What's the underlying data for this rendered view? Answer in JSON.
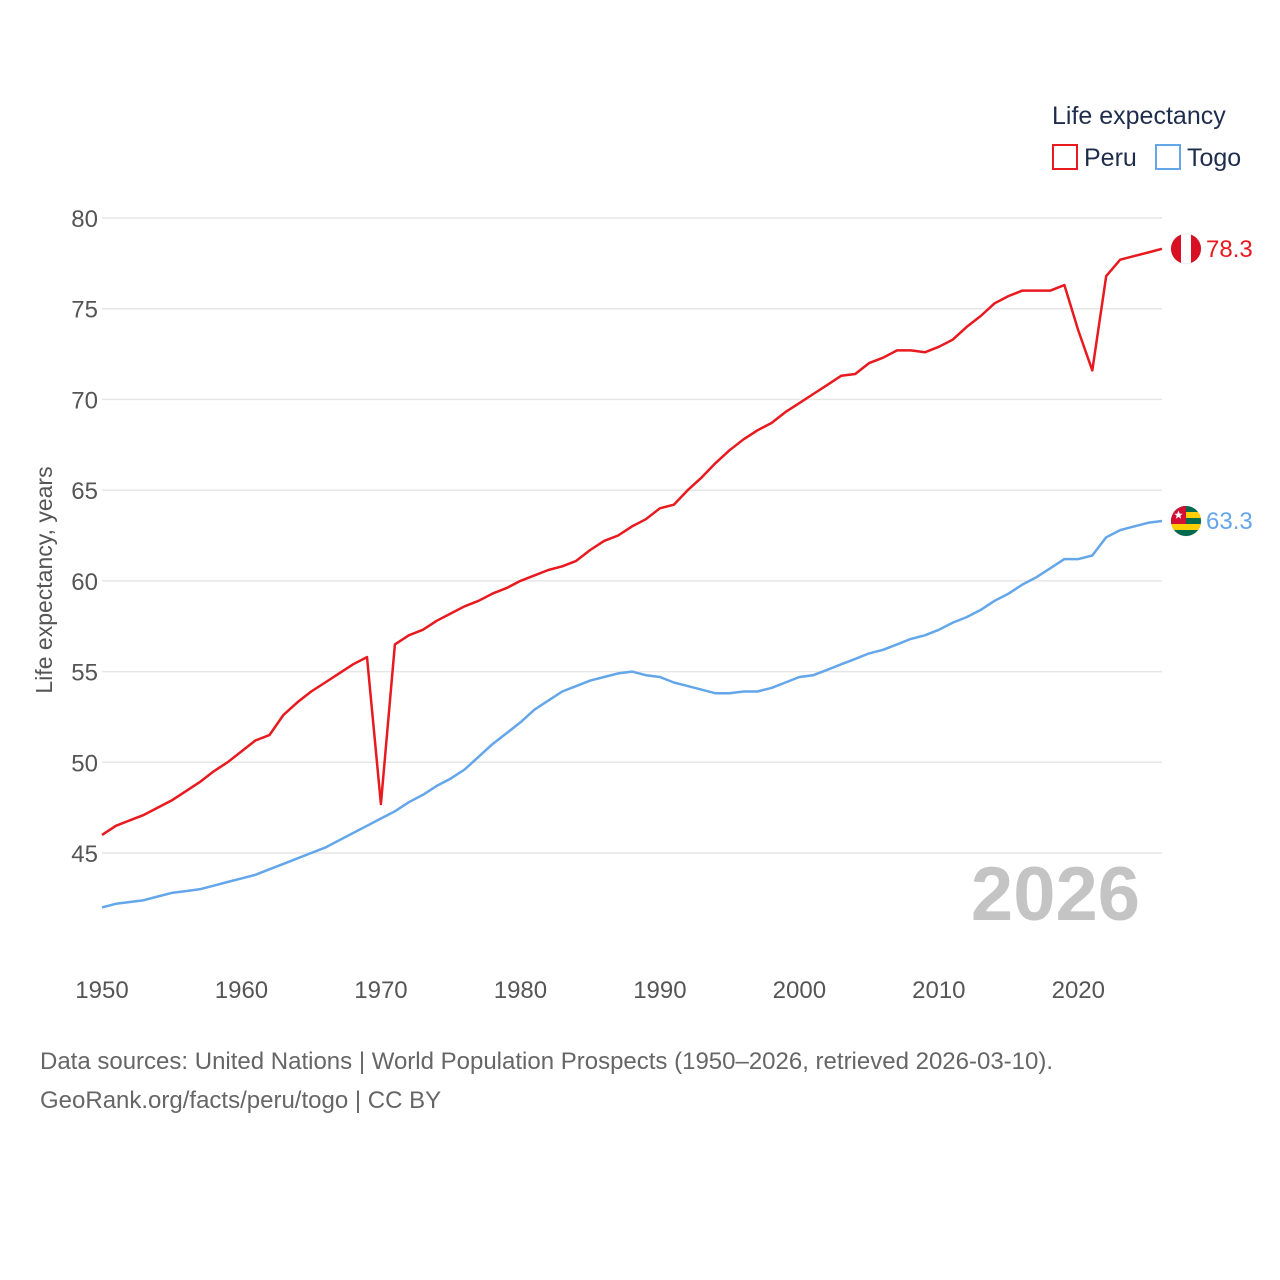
{
  "chart_data": {
    "type": "line",
    "title": "",
    "legend_title": "Life expectancy",
    "ylabel": "Life expectancy, years",
    "xlabel": "",
    "xlim": [
      1950,
      2026
    ],
    "ylim": [
      40,
      82
    ],
    "x_ticks": [
      "1950",
      "1960",
      "1970",
      "1980",
      "1990",
      "2000",
      "2010",
      "2020"
    ],
    "y_ticks": [
      "45",
      "50",
      "55",
      "60",
      "65",
      "70",
      "75",
      "80"
    ],
    "current_year": "2026",
    "legend_position": "top-right",
    "x": [
      1950,
      1951,
      1952,
      1953,
      1954,
      1955,
      1956,
      1957,
      1958,
      1959,
      1960,
      1961,
      1962,
      1963,
      1964,
      1965,
      1966,
      1967,
      1968,
      1969,
      1970,
      1971,
      1972,
      1973,
      1974,
      1975,
      1976,
      1977,
      1978,
      1979,
      1980,
      1981,
      1982,
      1983,
      1984,
      1985,
      1986,
      1987,
      1988,
      1989,
      1990,
      1991,
      1992,
      1993,
      1994,
      1995,
      1996,
      1997,
      1998,
      1999,
      2000,
      2001,
      2002,
      2003,
      2004,
      2005,
      2006,
      2007,
      2008,
      2009,
      2010,
      2011,
      2012,
      2013,
      2014,
      2015,
      2016,
      2017,
      2018,
      2019,
      2020,
      2021,
      2022,
      2023,
      2024,
      2025,
      2026
    ],
    "series": [
      {
        "name": "Peru",
        "color": "#e8191f",
        "end_label": "78.3",
        "flag": "peru-flag",
        "values": [
          46.0,
          46.5,
          46.8,
          47.1,
          47.5,
          47.9,
          48.4,
          48.9,
          49.5,
          50.0,
          50.6,
          51.2,
          51.5,
          52.6,
          53.3,
          53.9,
          54.4,
          54.9,
          55.4,
          55.8,
          47.7,
          56.5,
          57.0,
          57.3,
          57.8,
          58.2,
          58.6,
          58.9,
          59.3,
          59.6,
          60.0,
          60.3,
          60.6,
          60.8,
          61.1,
          61.7,
          62.2,
          62.5,
          63.0,
          63.4,
          64.0,
          64.2,
          65.0,
          65.7,
          66.5,
          67.2,
          67.8,
          68.3,
          68.7,
          69.3,
          69.8,
          70.3,
          70.8,
          71.3,
          71.4,
          72.0,
          72.3,
          72.7,
          72.7,
          72.6,
          72.9,
          73.3,
          74.0,
          74.6,
          75.3,
          75.7,
          76.0,
          76.0,
          76.0,
          76.3,
          73.8,
          71.6,
          76.8,
          77.7,
          77.9,
          78.1,
          78.3
        ]
      },
      {
        "name": "Togo",
        "color": "#64a6ea",
        "end_label": "63.3",
        "flag": "togo-flag",
        "values": [
          42.0,
          42.2,
          42.3,
          42.4,
          42.6,
          42.8,
          42.9,
          43.0,
          43.2,
          43.4,
          43.6,
          43.8,
          44.1,
          44.4,
          44.7,
          45.0,
          45.3,
          45.7,
          46.1,
          46.5,
          46.9,
          47.3,
          47.8,
          48.2,
          48.7,
          49.1,
          49.6,
          50.3,
          51.0,
          51.6,
          52.2,
          52.9,
          53.4,
          53.9,
          54.2,
          54.5,
          54.7,
          54.9,
          55.0,
          54.8,
          54.7,
          54.4,
          54.2,
          54.0,
          53.8,
          53.8,
          53.9,
          53.9,
          54.1,
          54.4,
          54.7,
          54.8,
          55.1,
          55.4,
          55.7,
          56.0,
          56.2,
          56.5,
          56.8,
          57.0,
          57.3,
          57.7,
          58.0,
          58.4,
          58.9,
          59.3,
          59.8,
          60.2,
          60.7,
          61.2,
          61.2,
          61.4,
          62.4,
          62.8,
          63.0,
          63.2,
          63.3
        ]
      }
    ]
  },
  "footer": {
    "line1": "Data sources: United Nations | World Population Prospects (1950–2026, retrieved 2026-03-10).",
    "line2": "GeoRank.org/facts/peru/togo | CC BY"
  }
}
